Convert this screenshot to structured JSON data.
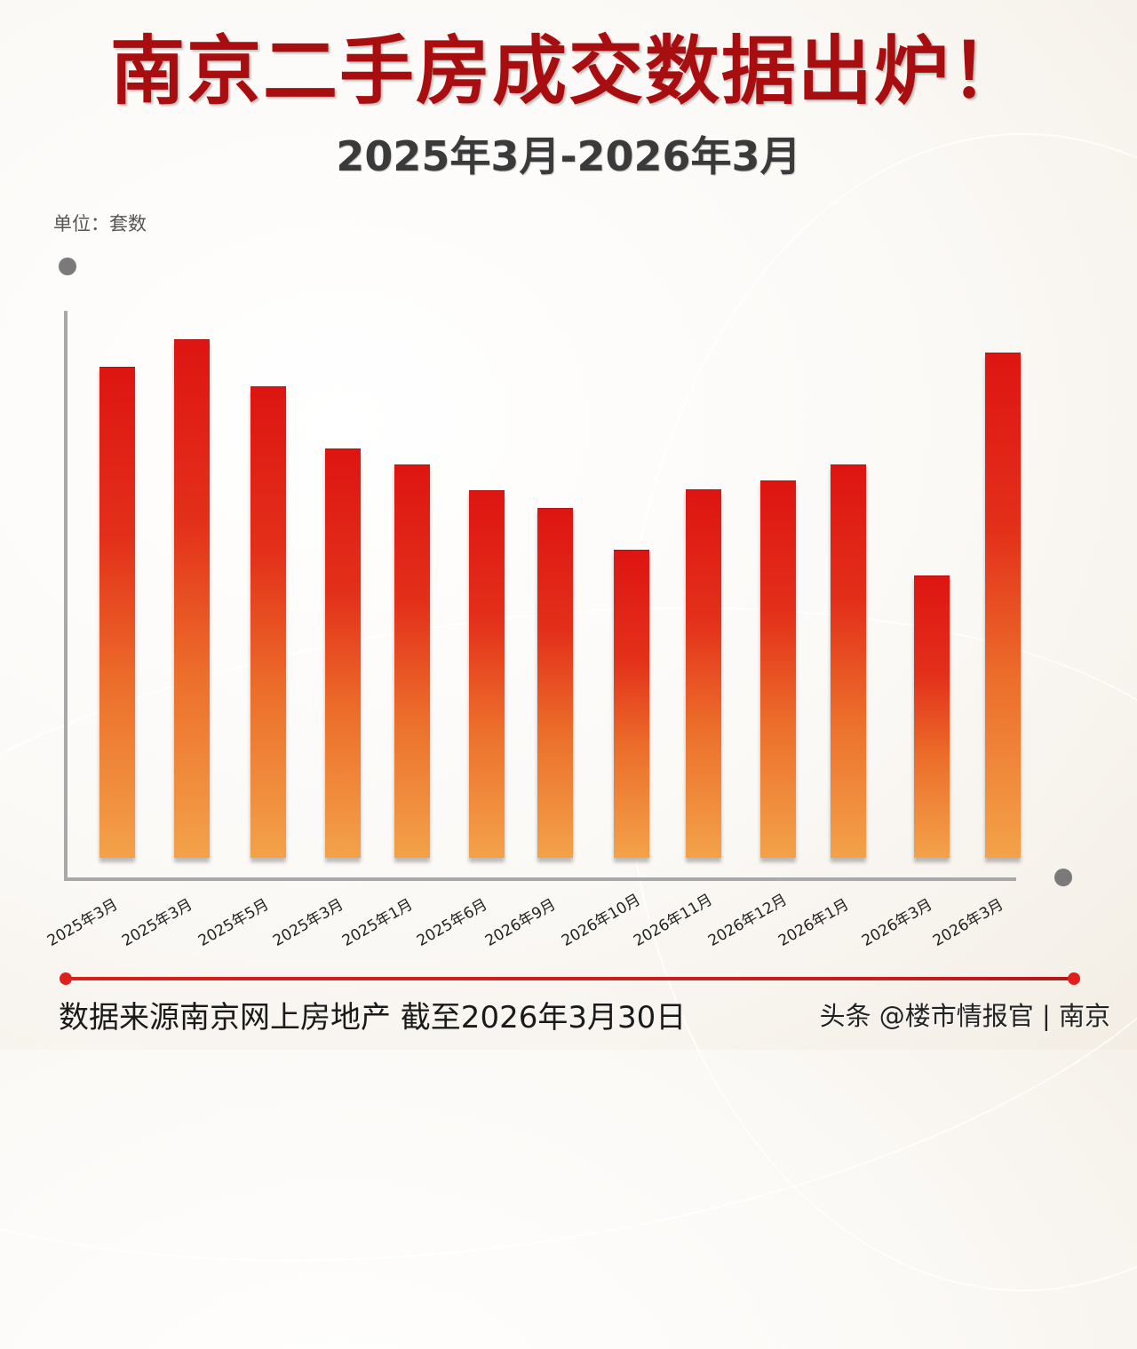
{
  "header": {
    "title": "南京二手房成交数据出炉！",
    "subtitle": "2025年3月-2026年3月"
  },
  "unit_label": "单位：套数",
  "footer": {
    "source": "数据来源南京网上房地产 截至2026年3月30日",
    "credit": "头条 @楼市情报官 | 南京"
  },
  "colors": {
    "title": "#a80d10",
    "bar_top": "#de1512",
    "bar_bottom": "#f3a24a",
    "axis": "#a8a8a8",
    "source_line": "#d8201c"
  },
  "chart_data": {
    "type": "bar",
    "title": "南京二手房成交数据出炉！",
    "subtitle": "2025年3月-2026年3月",
    "xlabel": "",
    "ylabel": "单位：套数",
    "y_axis_ticks": "none (no numeric scale shown)",
    "value_note": "Values are relative bar heights in pixels (no numeric axis or data labels shown)",
    "categories": [
      "2025年3月",
      "2025年3月",
      "2025年5月",
      "2025年3月",
      "2025年1月",
      "2025年6月",
      "2026年9月",
      "2026年10月",
      "2026年11月",
      "2026年12月",
      "2026年1月",
      "2026年3月",
      "2026年3月"
    ],
    "values": [
      552,
      583,
      530,
      460,
      442,
      413,
      393,
      346,
      414,
      424,
      442,
      317,
      568
    ],
    "grid": false,
    "legend": "none"
  }
}
